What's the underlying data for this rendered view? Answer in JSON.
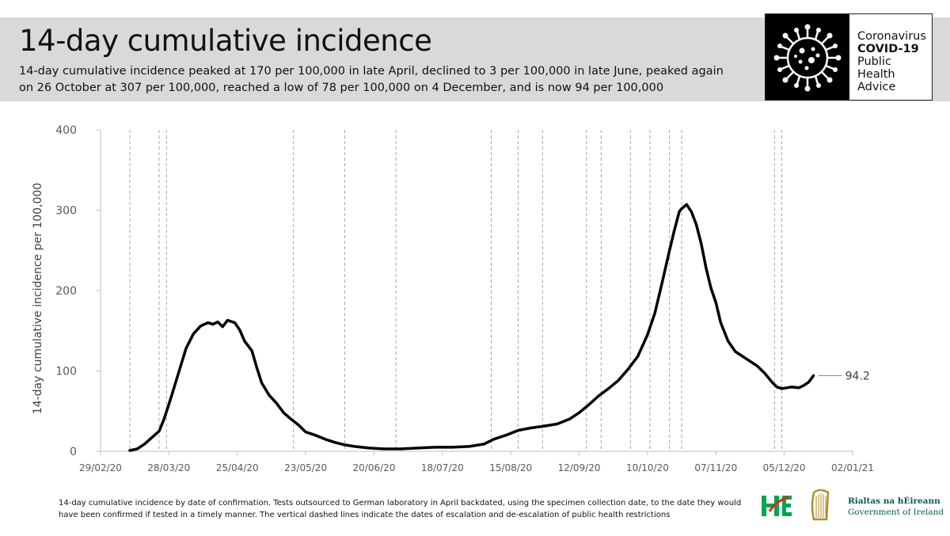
{
  "header": {
    "title": "14-day cumulative incidence",
    "subtitle": "14-day cumulative incidence peaked at 170 per 100,000 in late April, declined to 3 per 100,000 in late June, peaked again on 26 October at 307 per 100,000, reached a low of 78 per 100,000 on 4 December, and is now 94 per 100,000"
  },
  "brand": {
    "line1": "Coronavirus",
    "line2": "COVID-19",
    "line3": "Public Health",
    "line4": "Advice"
  },
  "footnote": "14-day cumulative incidence by date of confirmation. Tests outsourced to German laboratory in April backdated, using the specimen collection date, to the date they would have been confirmed if tested in a timely manner. The vertical dashed lines indicate the dates of escalation and de-escalation of public health restrictions",
  "government": {
    "line1": "Rialtas na hÉireann",
    "line2": "Government of Ireland"
  },
  "colors": {
    "header_bg": "#d9d9d9",
    "line": "#000000",
    "grid_dash": "#a6a6a6",
    "gov_green": "#0b5c52",
    "hse_green": "#00a651",
    "hse_red": "#e2231a"
  },
  "chart_data": {
    "type": "line",
    "title": "",
    "ylabel": "14-day cumulative incidence per 100,000",
    "xlabel": "",
    "ylim": [
      0,
      400
    ],
    "yticks": [
      0,
      100,
      200,
      300,
      400
    ],
    "xlim": [
      "2020-02-29",
      "2021-01-02"
    ],
    "xticks": [
      "29/02/20",
      "28/03/20",
      "25/04/20",
      "23/05/20",
      "20/06/20",
      "18/07/20",
      "15/08/20",
      "12/09/20",
      "10/10/20",
      "07/11/20",
      "05/12/20",
      "02/01/21"
    ],
    "end_label": "94.2",
    "restriction_dates": [
      "2020-03-12",
      "2020-03-24",
      "2020-03-27",
      "2020-05-18",
      "2020-06-08",
      "2020-06-29",
      "2020-08-07",
      "2020-08-18",
      "2020-08-28",
      "2020-09-15",
      "2020-09-21",
      "2020-10-03",
      "2020-10-11",
      "2020-10-19",
      "2020-10-24",
      "2020-12-01",
      "2020-12-04"
    ],
    "series": [
      {
        "name": "",
        "points": [
          [
            "2020-03-12",
            1
          ],
          [
            "2020-03-15",
            3
          ],
          [
            "2020-03-18",
            9
          ],
          [
            "2020-03-21",
            17
          ],
          [
            "2020-03-24",
            25
          ],
          [
            "2020-03-26",
            40
          ],
          [
            "2020-03-29",
            68
          ],
          [
            "2020-04-01",
            98
          ],
          [
            "2020-04-04",
            128
          ],
          [
            "2020-04-07",
            146
          ],
          [
            "2020-04-10",
            156
          ],
          [
            "2020-04-13",
            160
          ],
          [
            "2020-04-15",
            158
          ],
          [
            "2020-04-17",
            161
          ],
          [
            "2020-04-19",
            155
          ],
          [
            "2020-04-21",
            163
          ],
          [
            "2020-04-24",
            160
          ],
          [
            "2020-04-26",
            151
          ],
          [
            "2020-04-28",
            137
          ],
          [
            "2020-05-01",
            125
          ],
          [
            "2020-05-03",
            104
          ],
          [
            "2020-05-05",
            85
          ],
          [
            "2020-05-08",
            70
          ],
          [
            "2020-05-11",
            60
          ],
          [
            "2020-05-14",
            48
          ],
          [
            "2020-05-17",
            40
          ],
          [
            "2020-05-20",
            33
          ],
          [
            "2020-05-23",
            24
          ],
          [
            "2020-05-27",
            20
          ],
          [
            "2020-05-31",
            15
          ],
          [
            "2020-06-04",
            11
          ],
          [
            "2020-06-08",
            8
          ],
          [
            "2020-06-12",
            6
          ],
          [
            "2020-06-18",
            4
          ],
          [
            "2020-06-24",
            3
          ],
          [
            "2020-07-01",
            3
          ],
          [
            "2020-07-08",
            4
          ],
          [
            "2020-07-15",
            5
          ],
          [
            "2020-07-22",
            5
          ],
          [
            "2020-07-29",
            6
          ],
          [
            "2020-08-04",
            9
          ],
          [
            "2020-08-08",
            15
          ],
          [
            "2020-08-13",
            20
          ],
          [
            "2020-08-18",
            26
          ],
          [
            "2020-08-23",
            29
          ],
          [
            "2020-08-28",
            31
          ],
          [
            "2020-09-03",
            34
          ],
          [
            "2020-09-08",
            40
          ],
          [
            "2020-09-12",
            48
          ],
          [
            "2020-09-16",
            58
          ],
          [
            "2020-09-20",
            69
          ],
          [
            "2020-09-24",
            78
          ],
          [
            "2020-09-28",
            88
          ],
          [
            "2020-10-02",
            102
          ],
          [
            "2020-10-06",
            118
          ],
          [
            "2020-10-10",
            145
          ],
          [
            "2020-10-13",
            172
          ],
          [
            "2020-10-16",
            210
          ],
          [
            "2020-10-19",
            250
          ],
          [
            "2020-10-21",
            275
          ],
          [
            "2020-10-23",
            298
          ],
          [
            "2020-10-24",
            302
          ],
          [
            "2020-10-26",
            307
          ],
          [
            "2020-10-28",
            298
          ],
          [
            "2020-10-30",
            282
          ],
          [
            "2020-11-01",
            258
          ],
          [
            "2020-11-03",
            228
          ],
          [
            "2020-11-05",
            203
          ],
          [
            "2020-11-07",
            185
          ],
          [
            "2020-11-09",
            160
          ],
          [
            "2020-11-12",
            137
          ],
          [
            "2020-11-15",
            124
          ],
          [
            "2020-11-18",
            118
          ],
          [
            "2020-11-21",
            112
          ],
          [
            "2020-11-24",
            106
          ],
          [
            "2020-11-27",
            97
          ],
          [
            "2020-11-30",
            86
          ],
          [
            "2020-12-02",
            80
          ],
          [
            "2020-12-04",
            78
          ],
          [
            "2020-12-08",
            80
          ],
          [
            "2020-12-11",
            79
          ],
          [
            "2020-12-13",
            82
          ],
          [
            "2020-12-15",
            86
          ],
          [
            "2020-12-17",
            94.2
          ]
        ]
      }
    ]
  }
}
